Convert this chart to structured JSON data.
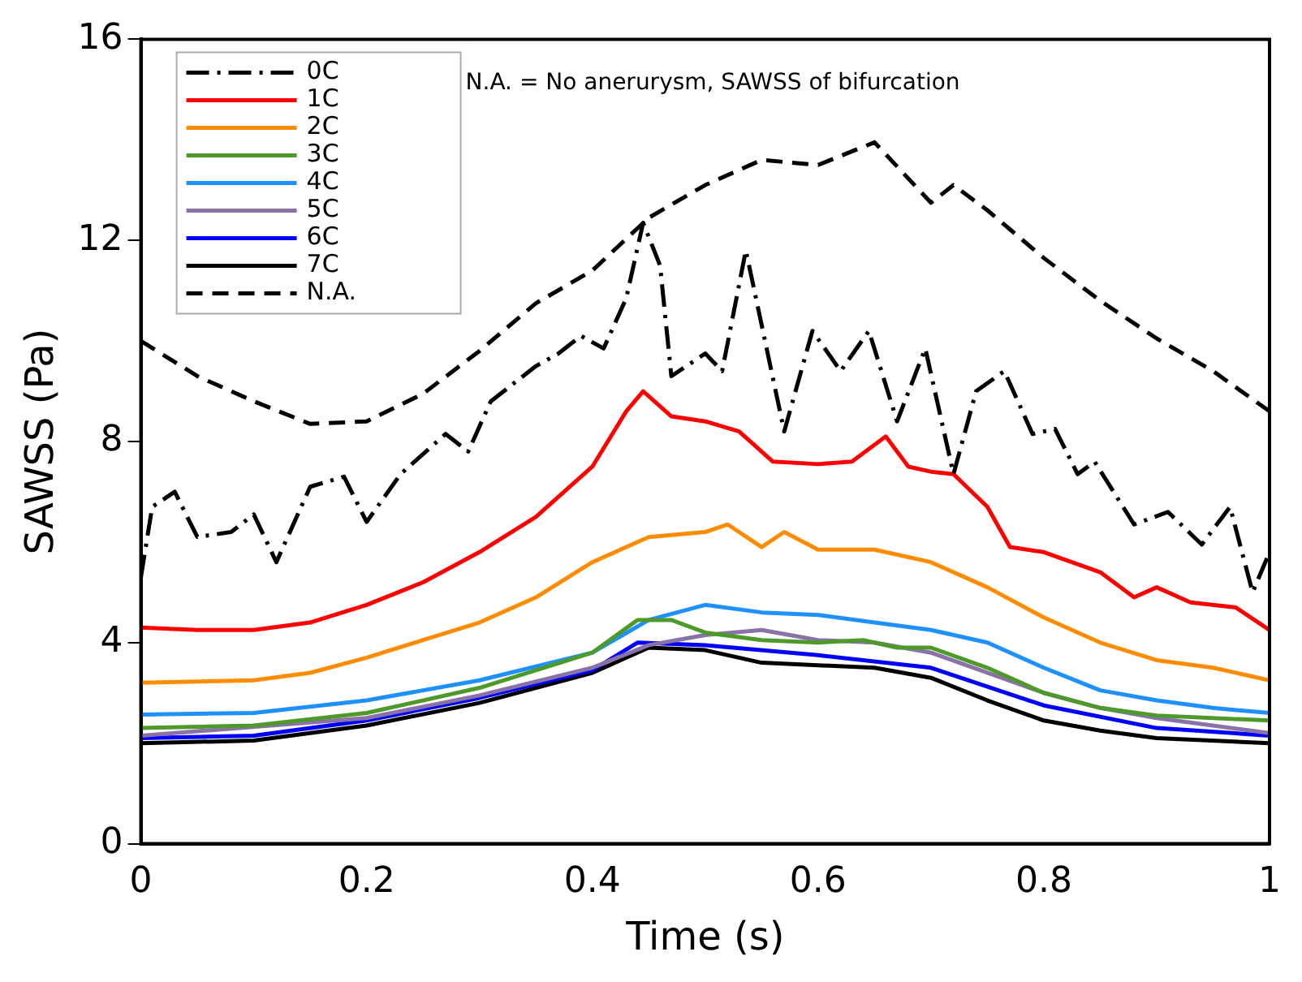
{
  "chart_data": {
    "type": "line",
    "xlabel": "Time (s)",
    "ylabel": "SAWSS (Pa)",
    "xlim": [
      0,
      1
    ],
    "xticks": [
      0,
      0.2,
      0.4,
      0.6,
      0.8,
      1
    ],
    "ylim": [
      0,
      16
    ],
    "yticks": [
      0,
      4,
      8,
      12,
      16
    ],
    "grid": false,
    "legend": "top left",
    "marker": "none",
    "annotations": [
      "N.A. = No anerurysm, SAWSS of bifurcation"
    ],
    "series": [
      {
        "name": "0C",
        "color": "#000000",
        "line_style": "dashdot",
        "x": [
          0,
          0.01,
          0.03,
          0.05,
          0.08,
          0.1,
          0.12,
          0.15,
          0.18,
          0.2,
          0.23,
          0.27,
          0.29,
          0.31,
          0.35,
          0.37,
          0.39,
          0.41,
          0.43,
          0.445,
          0.46,
          0.47,
          0.5,
          0.515,
          0.536,
          0.57,
          0.595,
          0.62,
          0.645,
          0.67,
          0.695,
          0.72,
          0.74,
          0.765,
          0.79,
          0.81,
          0.83,
          0.845,
          0.88,
          0.91,
          0.94,
          0.965,
          0.985,
          1
        ],
        "values": [
          5.3,
          6.7,
          7.0,
          6.1,
          6.2,
          6.55,
          5.6,
          7.1,
          7.3,
          6.4,
          7.35,
          8.15,
          7.8,
          8.8,
          9.5,
          9.75,
          10.1,
          9.85,
          10.85,
          12.35,
          11.5,
          9.3,
          9.75,
          9.4,
          11.8,
          8.2,
          10.2,
          9.4,
          10.2,
          8.4,
          9.85,
          7.35,
          9.0,
          9.4,
          8.15,
          8.25,
          7.35,
          7.6,
          6.35,
          6.6,
          5.95,
          6.7,
          5.0,
          5.8
        ]
      },
      {
        "name": "1C",
        "color": "#ff0000",
        "x": [
          0,
          0.05,
          0.1,
          0.15,
          0.2,
          0.25,
          0.3,
          0.35,
          0.4,
          0.43,
          0.445,
          0.47,
          0.5,
          0.53,
          0.56,
          0.6,
          0.63,
          0.66,
          0.68,
          0.7,
          0.72,
          0.75,
          0.77,
          0.8,
          0.85,
          0.88,
          0.9,
          0.93,
          0.97,
          1
        ],
        "values": [
          4.3,
          4.25,
          4.25,
          4.4,
          4.75,
          5.2,
          5.8,
          6.5,
          7.5,
          8.6,
          9.0,
          8.5,
          8.4,
          8.2,
          7.6,
          7.55,
          7.6,
          8.1,
          7.5,
          7.4,
          7.35,
          6.7,
          5.9,
          5.8,
          5.4,
          4.9,
          5.1,
          4.8,
          4.7,
          4.25
        ]
      },
      {
        "name": "2C",
        "color": "#ff8c00",
        "x": [
          0,
          0.1,
          0.15,
          0.2,
          0.25,
          0.3,
          0.35,
          0.4,
          0.45,
          0.5,
          0.52,
          0.55,
          0.57,
          0.6,
          0.65,
          0.7,
          0.75,
          0.8,
          0.85,
          0.9,
          0.95,
          1
        ],
        "values": [
          3.2,
          3.25,
          3.4,
          3.7,
          4.05,
          4.4,
          4.9,
          5.6,
          6.1,
          6.2,
          6.35,
          5.9,
          6.2,
          5.85,
          5.85,
          5.6,
          5.1,
          4.5,
          4.0,
          3.65,
          3.5,
          3.25
        ]
      },
      {
        "name": "3C",
        "color": "#4d9a2a",
        "x": [
          0,
          0.1,
          0.2,
          0.3,
          0.4,
          0.44,
          0.47,
          0.5,
          0.55,
          0.6,
          0.64,
          0.67,
          0.7,
          0.75,
          0.8,
          0.85,
          0.9,
          1
        ],
        "values": [
          2.3,
          2.35,
          2.6,
          3.1,
          3.8,
          4.45,
          4.45,
          4.2,
          4.05,
          4.0,
          4.05,
          3.9,
          3.9,
          3.5,
          3.0,
          2.7,
          2.55,
          2.45
        ]
      },
      {
        "name": "4C",
        "color": "#1e90ff",
        "x": [
          0,
          0.1,
          0.2,
          0.3,
          0.4,
          0.45,
          0.5,
          0.55,
          0.6,
          0.65,
          0.7,
          0.75,
          0.8,
          0.85,
          0.9,
          0.95,
          1
        ],
        "values": [
          2.57,
          2.6,
          2.85,
          3.25,
          3.8,
          4.45,
          4.75,
          4.6,
          4.55,
          4.4,
          4.25,
          4.0,
          3.5,
          3.05,
          2.85,
          2.7,
          2.6
        ]
      },
      {
        "name": "5C",
        "color": "#8a72a8",
        "x": [
          0,
          0.2,
          0.3,
          0.4,
          0.45,
          0.5,
          0.55,
          0.6,
          0.65,
          0.7,
          0.75,
          0.8,
          0.85,
          0.9,
          1
        ],
        "values": [
          2.15,
          2.5,
          2.95,
          3.5,
          3.95,
          4.15,
          4.25,
          4.05,
          4.0,
          3.8,
          3.4,
          3.0,
          2.7,
          2.5,
          2.2
        ]
      },
      {
        "name": "6C",
        "color": "#0000ff",
        "x": [
          0,
          0.1,
          0.2,
          0.3,
          0.4,
          0.44,
          0.5,
          0.6,
          0.7,
          0.8,
          0.9,
          1
        ],
        "values": [
          2.1,
          2.15,
          2.45,
          2.9,
          3.45,
          4.0,
          3.95,
          3.75,
          3.5,
          2.75,
          2.3,
          2.15
        ]
      },
      {
        "name": "7C",
        "color": "#000000",
        "x": [
          0,
          0.1,
          0.2,
          0.3,
          0.4,
          0.45,
          0.5,
          0.55,
          0.6,
          0.65,
          0.7,
          0.75,
          0.8,
          0.85,
          0.9,
          1
        ],
        "values": [
          2.0,
          2.05,
          2.35,
          2.8,
          3.4,
          3.9,
          3.85,
          3.6,
          3.55,
          3.5,
          3.3,
          2.85,
          2.45,
          2.25,
          2.1,
          2.0
        ]
      },
      {
        "name": "N.A.",
        "color": "#000000",
        "line_style": "dashed",
        "x": [
          0,
          0.05,
          0.1,
          0.15,
          0.2,
          0.25,
          0.3,
          0.35,
          0.4,
          0.45,
          0.5,
          0.55,
          0.6,
          0.65,
          0.7,
          0.72,
          0.75,
          0.8,
          0.85,
          0.9,
          0.95,
          1
        ],
        "values": [
          10.0,
          9.3,
          8.8,
          8.35,
          8.4,
          8.95,
          9.8,
          10.75,
          11.4,
          12.45,
          13.1,
          13.6,
          13.5,
          13.95,
          12.75,
          13.1,
          12.6,
          11.65,
          10.8,
          10.05,
          9.4,
          8.6
        ]
      }
    ]
  }
}
